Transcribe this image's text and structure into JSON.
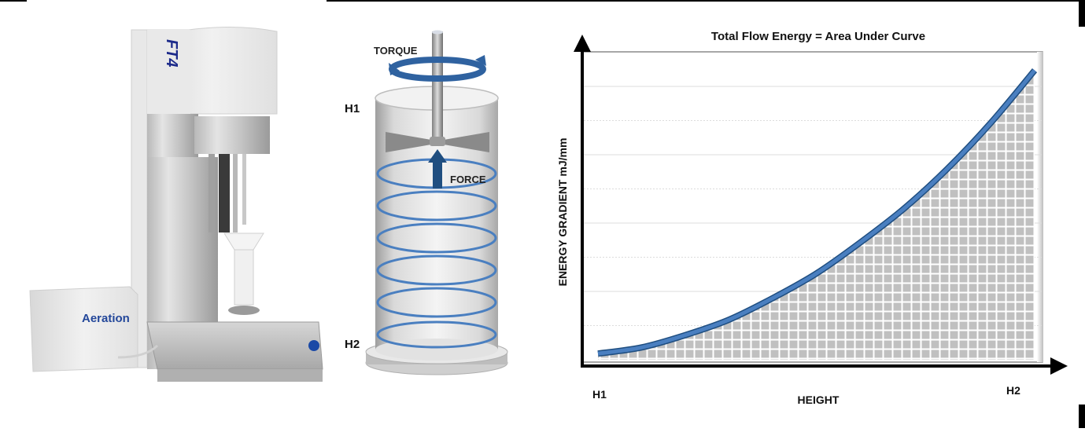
{
  "panel_instrument": {
    "brand_label": "FT4",
    "accessory_label": "Aeration"
  },
  "panel_vessel": {
    "torque_label": "TORQUE",
    "force_label": "FORCE",
    "h1_label": "H1",
    "h2_label": "H2"
  },
  "colors": {
    "accent_blue": "#4a7fc0",
    "dark_blue": "#1f4e80",
    "fill_gray": "#c0c0c0",
    "grid_line": "#dcdcdc"
  },
  "chart_data": {
    "type": "area",
    "title": "Total Flow Energy = Area Under Curve",
    "xlabel": "HEIGHT",
    "ylabel": "ENERGY GRADIENT mJ/mm",
    "x_tick_labels": [
      "H1",
      "H2"
    ],
    "x": [
      0,
      0.1,
      0.2,
      0.3,
      0.4,
      0.5,
      0.6,
      0.7,
      0.8,
      0.9,
      1.0
    ],
    "series": [
      {
        "name": "Energy gradient",
        "values": [
          0.02,
          0.04,
          0.08,
          0.13,
          0.2,
          0.28,
          0.38,
          0.49,
          0.62,
          0.77,
          0.94
        ]
      }
    ],
    "ylim": [
      0,
      1
    ],
    "xlim": [
      0,
      1
    ],
    "grid": true,
    "gridlines_y": 8,
    "fill_under_curve": "hatched gray grid",
    "legend": null
  }
}
